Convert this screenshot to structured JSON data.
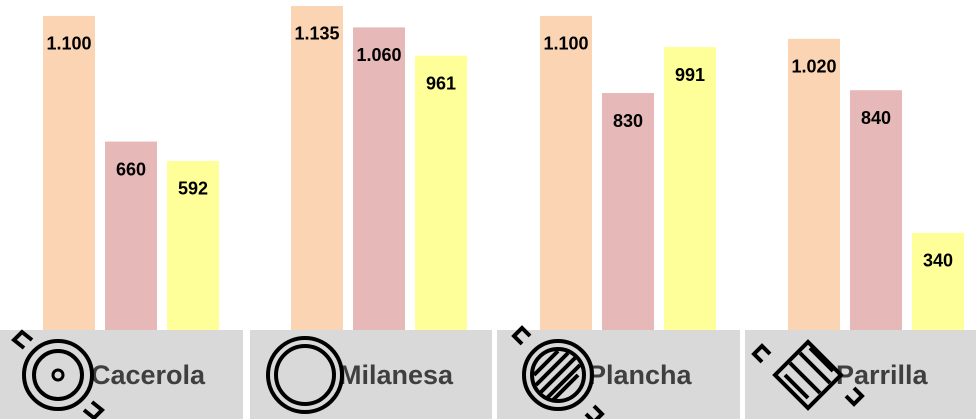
{
  "chart_data": {
    "type": "bar",
    "categories": [
      "Cacerola",
      "Milanesa",
      "Plancha",
      "Parrilla"
    ],
    "series": [
      {
        "color": "#fbd4b4",
        "values": [
          1100,
          1135,
          1100,
          1020
        ],
        "value_labels": [
          "1.100",
          "1.135",
          "1.100",
          "1.020"
        ]
      },
      {
        "color": "#e6b9b8",
        "values": [
          660,
          1060,
          830,
          840
        ],
        "value_labels": [
          "660",
          "1.060",
          "830",
          "840"
        ]
      },
      {
        "color": "#ffff99",
        "values": [
          592,
          961,
          991,
          340
        ],
        "value_labels": [
          "592",
          "961",
          "991",
          "340"
        ]
      }
    ]
  }
}
